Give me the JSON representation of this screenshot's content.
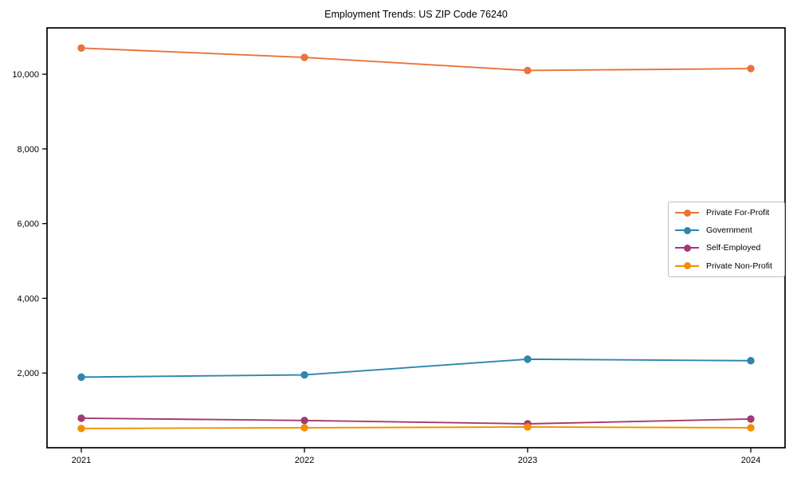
{
  "chart_data": {
    "type": "line",
    "title": "Employment Trends: US ZIP Code 76240",
    "xlabel": "",
    "ylabel": "",
    "categories": [
      "2021",
      "2022",
      "2023",
      "2024"
    ],
    "series": [
      {
        "name": "Private For-Profit",
        "color": "#E8743B",
        "values": [
          10700,
          10450,
          10100,
          10150
        ]
      },
      {
        "name": "Government",
        "color": "#2E86AB",
        "values": [
          1890,
          1950,
          2370,
          2330
        ]
      },
      {
        "name": "Self-Employed",
        "color": "#A23B72",
        "values": [
          790,
          730,
          640,
          770
        ]
      },
      {
        "name": "Private Non-Profit",
        "color": "#F18F01",
        "values": [
          515,
          535,
          555,
          535
        ]
      }
    ],
    "ylim": [
      0,
      11240
    ],
    "yticks": {
      "values": [
        2000,
        4000,
        6000,
        8000,
        10000
      ],
      "labels": [
        "2,000",
        "4,000",
        "6,000",
        "8,000",
        "10,000"
      ]
    },
    "grid": false,
    "marker": "circle",
    "legend_position": "middle-right"
  }
}
